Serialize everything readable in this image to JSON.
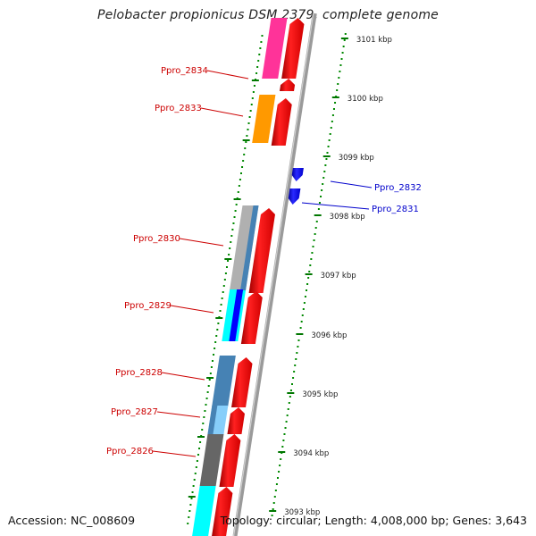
{
  "title": "Pelobacter propionicus DSM 2379, complete genome",
  "accession": "Accession: NC_008609",
  "summary": "Topology: circular; Length: 4,008,000 bp; Genes: 3,643",
  "colors": {
    "forward_gene": "#ff0000",
    "reverse_gene": "#0000ff",
    "forward_label": "#cc0000",
    "reverse_label": "#0000cc",
    "tick": "#007700",
    "backbone": "#888888"
  },
  "tick_labels": [
    "3101 kbp",
    "3100 kbp",
    "3099 kbp",
    "3098 kbp",
    "3097 kbp",
    "3096 kbp",
    "3095 kbp",
    "3094 kbp",
    "3093 kbp"
  ],
  "genes": [
    {
      "label": "Ppro_2834",
      "strand": "+",
      "cog": "#ff3399"
    },
    {
      "label": "Ppro_2833",
      "strand": "+",
      "cog": "#ff9900"
    },
    {
      "label": "Ppro_2832",
      "strand": "-",
      "cog": ""
    },
    {
      "label": "Ppro_2831",
      "strand": "-",
      "cog": ""
    },
    {
      "label": "Ppro_2830",
      "strand": "+",
      "cog": "#b0b0b0"
    },
    {
      "label": "Ppro_2829",
      "strand": "+",
      "cog": "#00ffff"
    },
    {
      "label": "Ppro_2828",
      "strand": "+",
      "cog": "#4682b4"
    },
    {
      "label": "Ppro_2827",
      "strand": "+",
      "cog": "#87cefa"
    },
    {
      "label": "Ppro_2826",
      "strand": "+",
      "cog": "#666666"
    }
  ]
}
